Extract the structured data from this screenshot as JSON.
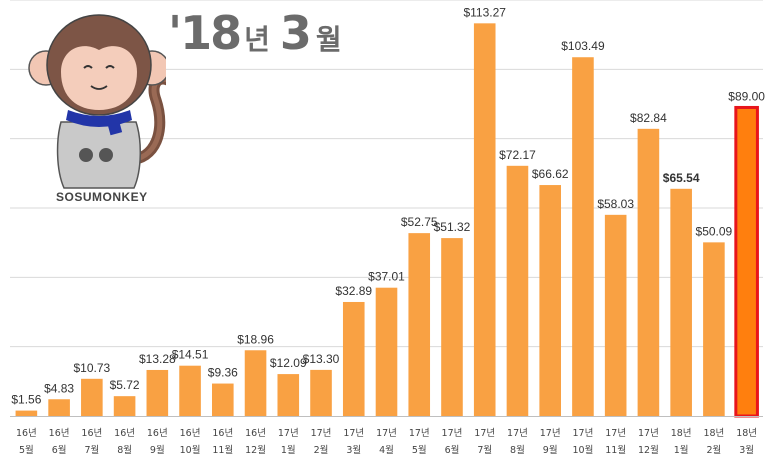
{
  "header": {
    "year": "'18",
    "year_unit": "년",
    "month": "3",
    "month_unit": "월"
  },
  "brand": "SOSUMONKEY",
  "colors": {
    "bar": "#F9A143",
    "highlight_bar": "#FF7F0E",
    "highlight_border": "#E8151B",
    "gridline": "#D9D9D9",
    "axis": "#BFBFBF",
    "label": "#333333"
  },
  "chart_data": {
    "type": "bar",
    "categories": [
      {
        "year": "16년",
        "month": "5월"
      },
      {
        "year": "16년",
        "month": "6월"
      },
      {
        "year": "16년",
        "month": "7월"
      },
      {
        "year": "16년",
        "month": "8월"
      },
      {
        "year": "16년",
        "month": "9월"
      },
      {
        "year": "16년",
        "month": "10월"
      },
      {
        "year": "16년",
        "month": "11월"
      },
      {
        "year": "16년",
        "month": "12월"
      },
      {
        "year": "17년",
        "month": "1월"
      },
      {
        "year": "17년",
        "month": "2월"
      },
      {
        "year": "17년",
        "month": "3월"
      },
      {
        "year": "17년",
        "month": "4월"
      },
      {
        "year": "17년",
        "month": "5월"
      },
      {
        "year": "17년",
        "month": "6월"
      },
      {
        "year": "17년",
        "month": "7월"
      },
      {
        "year": "17년",
        "month": "8월"
      },
      {
        "year": "17년",
        "month": "9월"
      },
      {
        "year": "17년",
        "month": "10월"
      },
      {
        "year": "17년",
        "month": "11월"
      },
      {
        "year": "17년",
        "month": "12월"
      },
      {
        "year": "18년",
        "month": "1월"
      },
      {
        "year": "18년",
        "month": "2월"
      },
      {
        "year": "18년",
        "month": "3월"
      }
    ],
    "values": [
      1.56,
      4.83,
      10.73,
      5.72,
      13.28,
      14.51,
      9.36,
      18.96,
      12.09,
      13.3,
      32.89,
      37.01,
      52.75,
      51.32,
      113.27,
      72.17,
      66.62,
      103.49,
      58.03,
      82.84,
      65.54,
      50.09,
      89.0
    ],
    "labels": [
      "$1.56",
      "$4.83",
      "$10.73",
      "$5.72",
      "$13.28",
      "$14.51",
      "$9.36",
      "$18.96",
      "$12.09",
      "$13.30",
      "$32.89",
      "$37.01",
      "$52.75",
      "$51.32",
      "$113.27",
      "$72.17",
      "$66.62",
      "$103.49",
      "$58.03",
      "$82.84",
      "$65.54",
      "$50.09",
      "$89.00"
    ],
    "bold_label_index": 20,
    "highlight_index": 22,
    "ylim": [
      0,
      120
    ],
    "grid_step": 20,
    "grid": true,
    "xlabel": "",
    "ylabel": "",
    "title": ""
  }
}
